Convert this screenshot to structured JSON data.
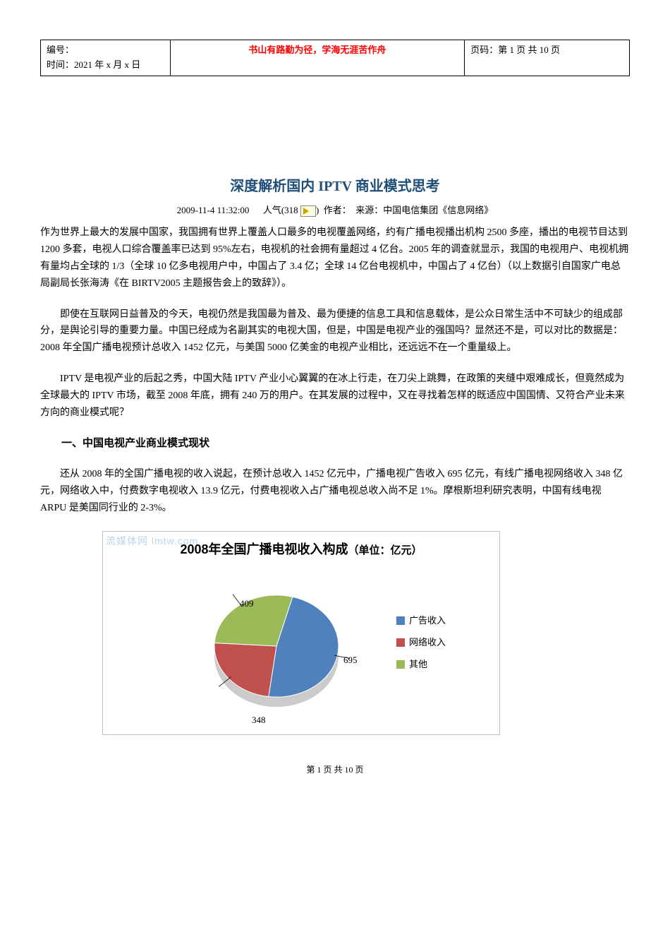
{
  "header": {
    "left_line1": "编号：",
    "left_line2": "时间：2021 年 x 月 x 日",
    "center": "书山有路勤为径，学海无涯苦作舟",
    "right": "页码：第 1 页 共 10 页"
  },
  "title": "深度解析国内 IPTV 商业模式思考",
  "meta": {
    "datetime": "2009-11-4 11:32:00",
    "popularity_label": "人气(318",
    "popularity_close": ")",
    "author_label": "作者：",
    "source_label": "来源：中国电信集团《信息网络》"
  },
  "paragraphs": {
    "p1": "作为世界上最大的发展中国家，我国拥有世界上覆盖人口最多的电视覆盖网络，约有广播电视播出机构 2500 多座，播出的电视节目达到 1200 多套，电视人口综合覆盖率已达到 95%左右，电视机的社会拥有量超过 4 亿台。2005 年的调查就显示，我国的电视用户、电视机拥有量均占全球的 1/3（全球 10 亿多电视用户中，中国占了 3.4 亿；全球 14 亿台电视机中，中国占了 4 亿台）（以上数据引自国家广电总局副局长张海涛《在 BIRTV2005 主题报告会上的致辞》）。",
    "p2": "即使在互联网日益普及的今天，电视仍然是我国最为普及、最为便捷的信息工具和信息载体，是公众日常生活中不可缺少的组成部分，是舆论引导的重要力量。中国已经成为名副其实的电视大国，但是，中国是电视产业的强国吗？显然还不是，可以对比的数据是：2008 年全国广播电视预计总收入 1452 亿元，与美国 5000 亿美金的电视产业相比，还远远不在一个重量级上。",
    "p3": "IPTV 是电视产业的后起之秀，中国大陆 IPTV 产业小心翼翼的在冰上行走，在刀尖上跳舞，在政策的夹缝中艰难成长，但竟然成为全球最大的 IPTV 市场，截至 2008 年底，拥有 240 万的用户。在其发展的过程中，又在寻找着怎样的既适应中国国情、又符合产业未来方向的商业模式呢？",
    "p4": "还从 2008 年的全国广播电视的收入说起，在预计总收入 1452 亿元中，广播电视广告收入 695 亿元，有线广播电视网络收入 348 亿元，网络收入中，付费数字电视收入 13.9 亿元，付费电视收入占广播电视总收入尚不足 1%。摩根斯坦利研究表明，中国有线电视 ARPU 是美国同行业的 2-3%。"
  },
  "section1_heading": "一、中国电视产业商业模式现状",
  "chart": {
    "type": "pie",
    "watermark": "流媒体网 lmtw.com",
    "title_main": "2008年全国广播电视收入构成",
    "title_unit": "（单位：亿元）",
    "categories": [
      "广告收入",
      "网络收入",
      "其他"
    ],
    "values": [
      695,
      348,
      409
    ],
    "slice_colors": [
      "#4f81bd",
      "#c0504d",
      "#9bbb59"
    ],
    "label_fontsize": 13,
    "title_fontsize": 18,
    "background_color": "#ffffff",
    "border_color": "#bfbfbf",
    "legend_position": "right",
    "legend_marker": "■",
    "pie_radius": 88,
    "pie_center": [
      150,
      108
    ],
    "start_angle_deg": -75,
    "ellipse_ry_ratio": 0.82
  },
  "footer": "第 1 页 共 10 页"
}
